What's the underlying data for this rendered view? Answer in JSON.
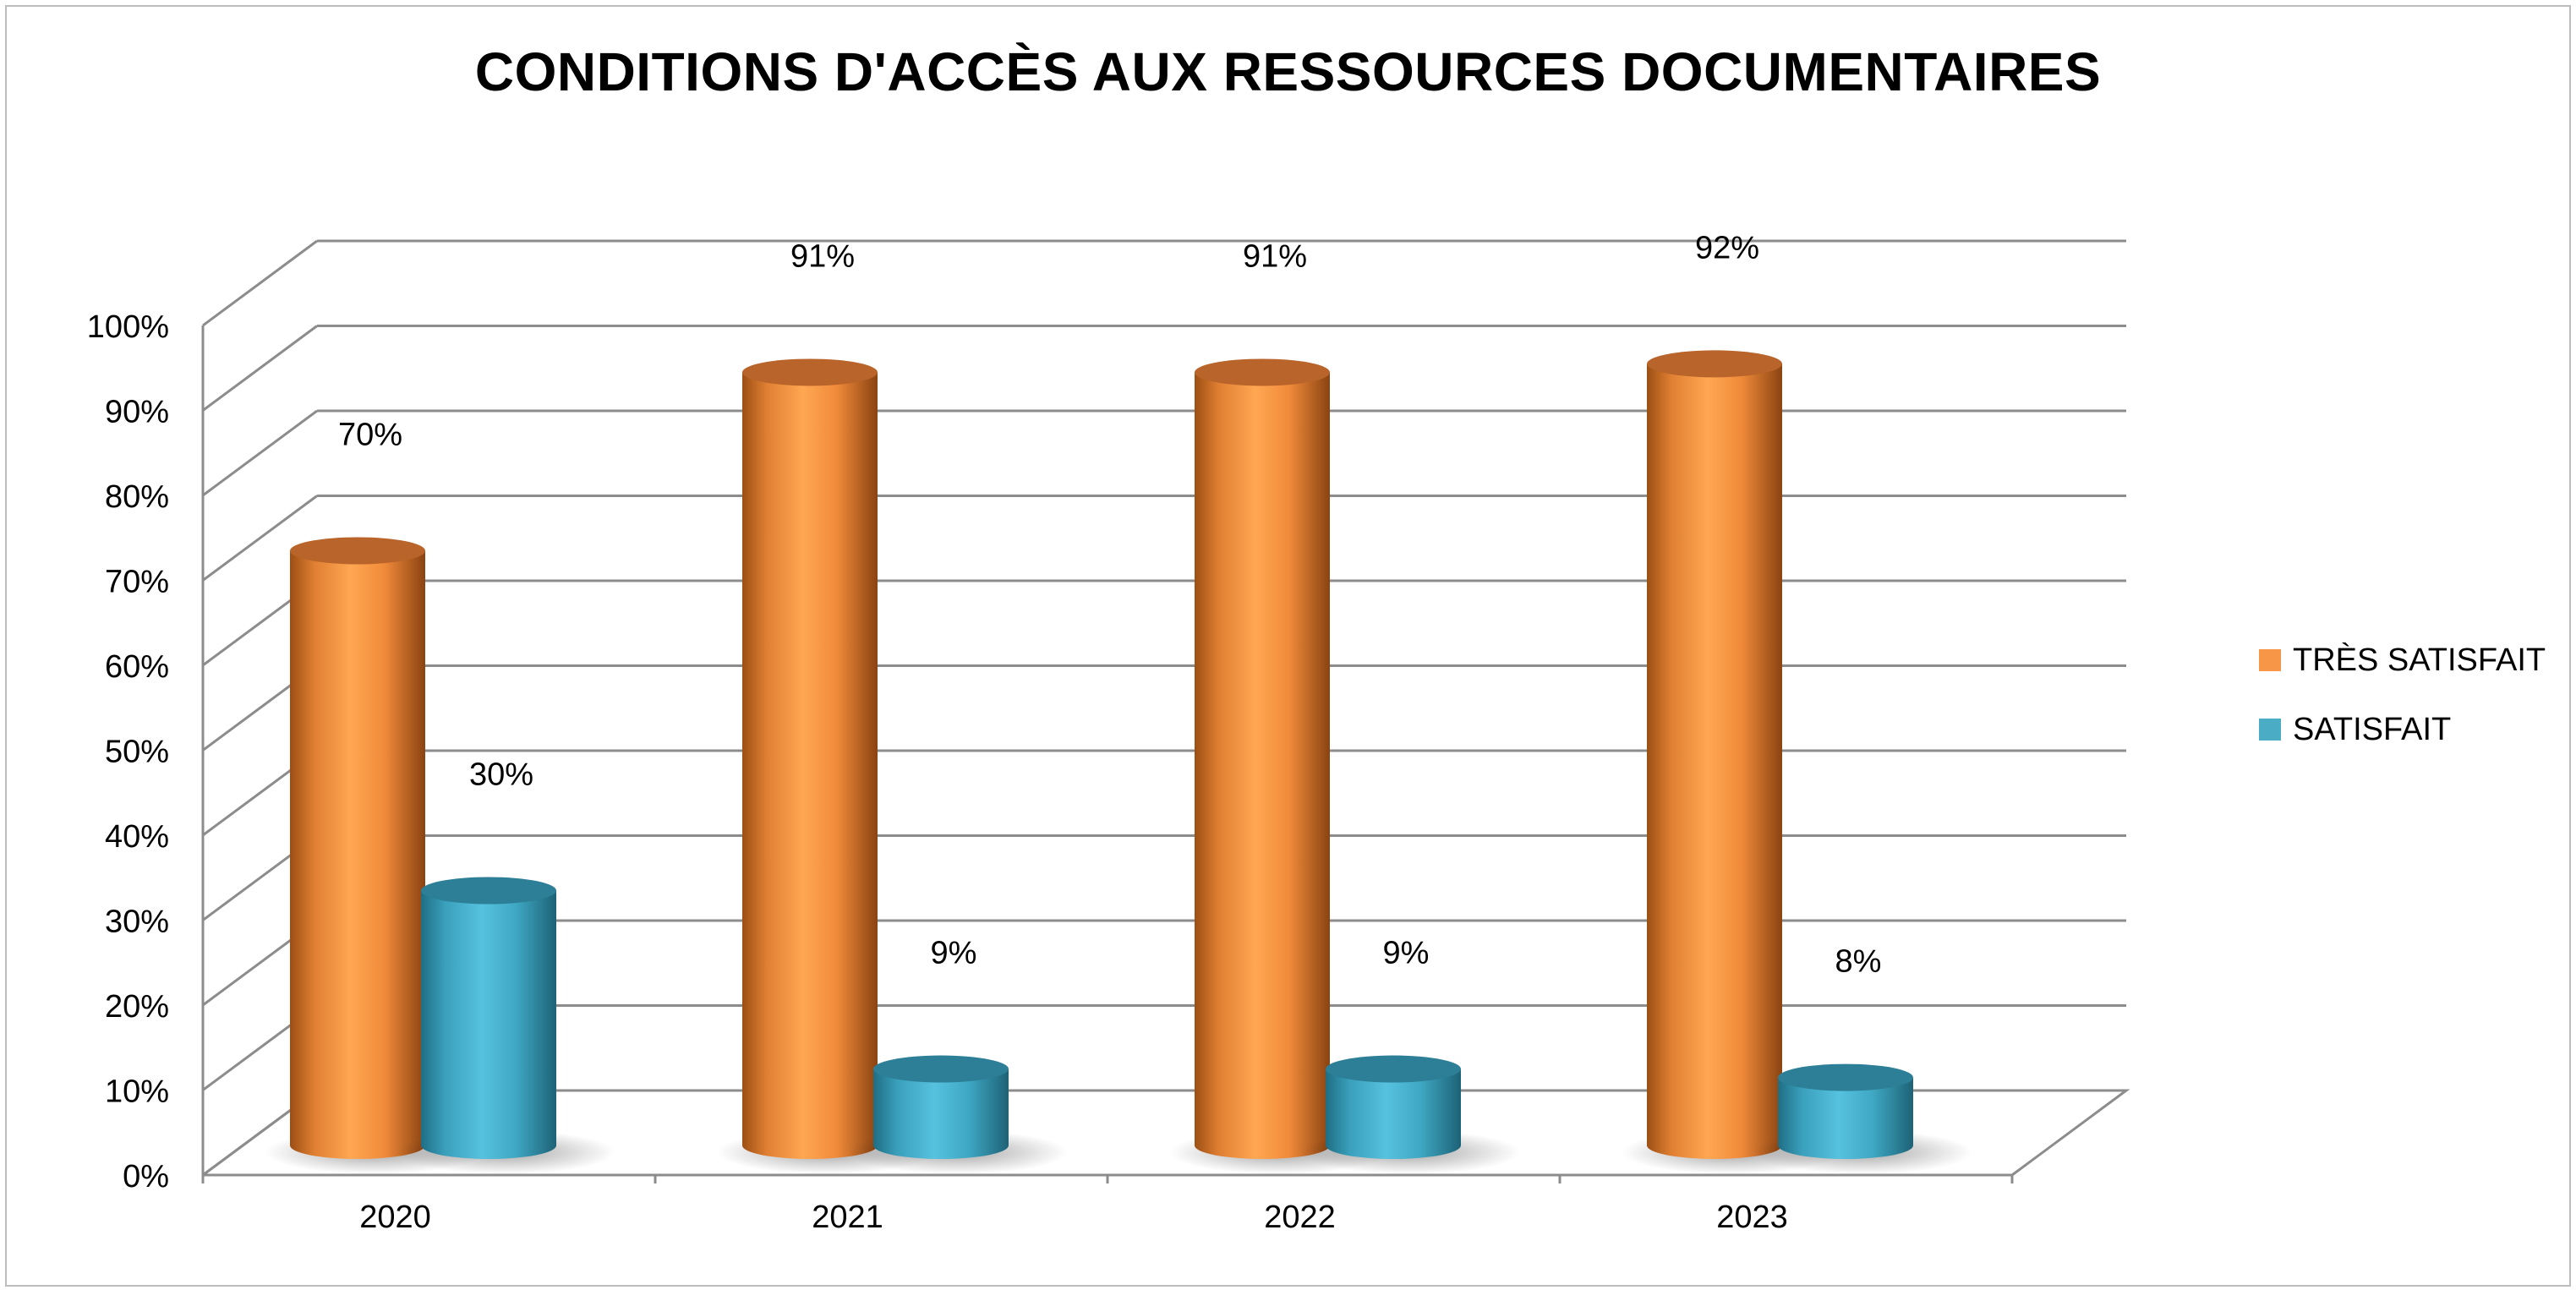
{
  "chart_data": {
    "type": "bar",
    "title": "CONDITIONS D'ACCÈS AUX RESSOURCES DOCUMENTAIRES",
    "categories": [
      "2020",
      "2021",
      "2022",
      "2023"
    ],
    "series": [
      {
        "name": "TRÈS SATISFAIT",
        "values": [
          70,
          91,
          91,
          92
        ],
        "labels": [
          "70%",
          "91%",
          "91%",
          "92%"
        ],
        "color": "#F79646"
      },
      {
        "name": "SATISFAIT",
        "values": [
          30,
          9,
          9,
          8
        ],
        "labels": [
          "30%",
          "9%",
          "9%",
          "8%"
        ],
        "color": "#4BACC6"
      }
    ],
    "ylim": [
      0,
      100
    ],
    "yticks": [
      "0%",
      "10%",
      "20%",
      "30%",
      "40%",
      "50%",
      "60%",
      "70%",
      "80%",
      "90%",
      "100%"
    ],
    "grid": true,
    "legend_position": "right",
    "shape": "3d-cylinder"
  }
}
